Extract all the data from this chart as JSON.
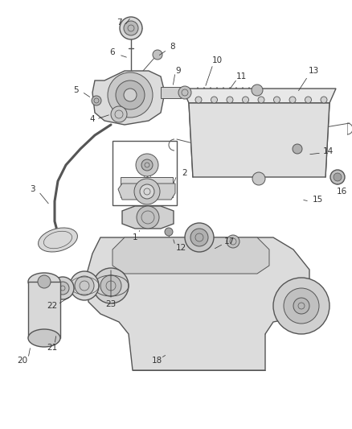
{
  "bg_color": "#ffffff",
  "line_color": "#555555",
  "label_color": "#333333",
  "fig_width": 4.38,
  "fig_height": 5.33,
  "dpi": 100
}
